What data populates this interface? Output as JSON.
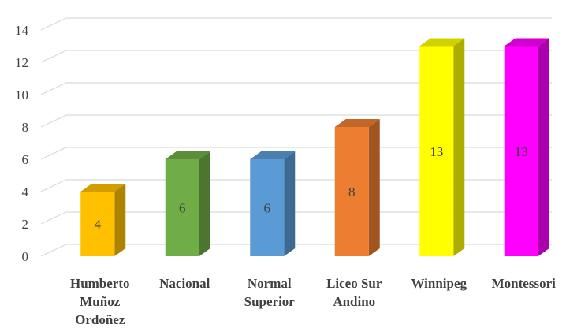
{
  "chart_data": {
    "type": "bar",
    "style": "3d",
    "title": "",
    "xlabel": "",
    "ylabel": "",
    "categories": [
      [
        "Humberto",
        "Muñoz",
        "Ordoñez"
      ],
      [
        "Nacional"
      ],
      [
        "Normal",
        "Superior"
      ],
      [
        "Liceo Sur",
        "Andino"
      ],
      [
        "Winnipeg"
      ],
      [
        "Montessori"
      ]
    ],
    "values": [
      4,
      6,
      6,
      8,
      13,
      13
    ],
    "data_labels": [
      "4",
      "6",
      "6",
      "8",
      "13",
      "13"
    ],
    "colors": [
      "#FFC000",
      "#70AD47",
      "#5B9BD5",
      "#ED7D31",
      "#FFFF00",
      "#FF00FF"
    ],
    "ylim": [
      0,
      14
    ],
    "yticks": [
      0,
      2,
      4,
      6,
      8,
      10,
      12,
      14
    ],
    "grid": true,
    "legend": "none"
  }
}
